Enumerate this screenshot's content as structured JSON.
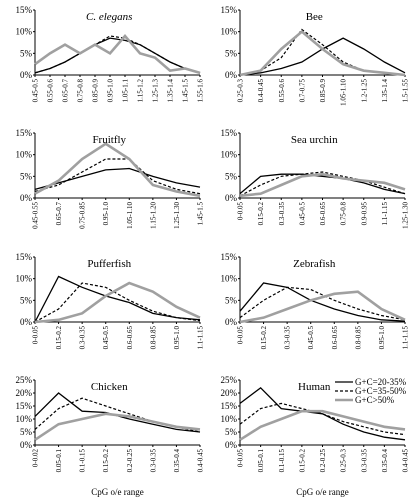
{
  "chart_data": [
    {
      "type": "line",
      "title": "C. elegans",
      "title_style": "italic",
      "categories": [
        "0.45-0.5",
        "0.55-0.6",
        "0.65-0.7",
        "0.75-0.8",
        "0.85-0.9",
        "0.95-1.0",
        "1.05-1.1",
        "1.15-1.2",
        "1.25-1.3",
        "1.35-1.4",
        "1.45-1.5",
        "1.55-1.6"
      ],
      "series": [
        {
          "name": "G+C=20-35%",
          "color": "#000000",
          "line_style": "solid",
          "values": [
            0.5,
            1.5,
            3,
            5,
            7,
            8.5,
            8,
            7,
            5,
            3,
            1.5,
            0.5
          ]
        },
        {
          "name": "G+C=35-50%",
          "color": "#000000",
          "line_style": "dashed",
          "values": [
            0.5,
            1.5,
            3,
            5,
            7,
            9,
            8.5,
            7,
            5,
            3,
            1.5,
            0.5
          ]
        },
        {
          "name": "G+C>50%",
          "color": "#a0a0a0",
          "line_style": "thick",
          "values": [
            2.5,
            5,
            7,
            5,
            7,
            5,
            9,
            5,
            4,
            1,
            1.5,
            0.5
          ]
        }
      ],
      "ylim": [
        0,
        15
      ],
      "yticks": [
        {
          "value": 0,
          "label": "0%"
        },
        {
          "value": 5,
          "label": "5%"
        },
        {
          "value": 10,
          "label": "10%"
        },
        {
          "value": 15,
          "label": "15%"
        }
      ]
    },
    {
      "type": "line",
      "title": "Bee",
      "categories": [
        "0.25-0.3",
        "0.4-0.45",
        "0.55-0.6",
        "0.7-0.75",
        "0.85-0.9",
        "1.05-1.10",
        "1.2-1.25",
        "1.35-1.4",
        "1.5-1.55"
      ],
      "series": [
        {
          "name": "G+C=20-35%",
          "color": "#000000",
          "line_style": "solid",
          "values": [
            0,
            0.5,
            1.5,
            3,
            6,
            8.5,
            6,
            3,
            0.5
          ]
        },
        {
          "name": "G+C=35-50%",
          "color": "#000000",
          "line_style": "dashed",
          "values": [
            0,
            1,
            4,
            10.5,
            7,
            3,
            1,
            0.5,
            0
          ]
        },
        {
          "name": "G+C>50%",
          "color": "#a0a0a0",
          "line_style": "thick",
          "values": [
            0,
            1,
            6,
            10,
            6,
            2.5,
            1,
            0.5,
            0
          ]
        }
      ],
      "ylim": [
        0,
        15
      ],
      "yticks": [
        {
          "value": 0,
          "label": "0%"
        },
        {
          "value": 5,
          "label": "5%"
        },
        {
          "value": 10,
          "label": "10%"
        },
        {
          "value": 15,
          "label": "15%"
        }
      ]
    },
    {
      "type": "line",
      "title": "Fruitfly",
      "categories": [
        "0.45-0.55",
        "0.65-0.7",
        "0.75-0.85",
        "0.95-1.0",
        "1.05-1.10",
        "1.15-1.20",
        "1.25-1.30",
        "1.45-1.5"
      ],
      "series": [
        {
          "name": "G+C=20-35%",
          "color": "#000000",
          "line_style": "solid",
          "values": [
            2,
            3.5,
            5,
            6.5,
            6.8,
            5,
            3.5,
            2.5
          ]
        },
        {
          "name": "G+C=35-50%",
          "color": "#000000",
          "line_style": "dashed",
          "values": [
            1.5,
            3,
            6,
            9,
            9,
            4,
            2,
            1
          ]
        },
        {
          "name": "G+C>50%",
          "color": "#a0a0a0",
          "line_style": "thick",
          "values": [
            1,
            4,
            9,
            12.5,
            9,
            3,
            1.5,
            0.5
          ]
        }
      ],
      "ylim": [
        0,
        15
      ],
      "yticks": [
        {
          "value": 0,
          "label": "0%"
        },
        {
          "value": 5,
          "label": "5%"
        },
        {
          "value": 10,
          "label": "10%"
        },
        {
          "value": 15,
          "label": "15%"
        }
      ]
    },
    {
      "type": "line",
      "title": "Sea urchin",
      "categories": [
        "0-0.05",
        "0.15-0.2",
        "0.3-0.35",
        "0.45-0.5",
        "0.6-0.65",
        "0.75-0.8",
        "0.9-0.95",
        "1.1-1.15",
        "1.25-1.30"
      ],
      "series": [
        {
          "name": "G+C=20-35%",
          "color": "#000000",
          "line_style": "solid",
          "values": [
            1,
            5,
            5.5,
            5.5,
            5,
            4.5,
            3.5,
            2,
            1
          ]
        },
        {
          "name": "G+C=35-50%",
          "color": "#000000",
          "line_style": "dashed",
          "values": [
            0.5,
            3,
            5,
            5.5,
            6,
            5,
            4,
            2.5,
            1
          ]
        },
        {
          "name": "G+C>50%",
          "color": "#a0a0a0",
          "line_style": "thick",
          "values": [
            0.5,
            1,
            3,
            5,
            5.5,
            4.5,
            4,
            3.5,
            2
          ]
        }
      ],
      "ylim": [
        0,
        15
      ],
      "yticks": [
        {
          "value": 0,
          "label": "0%"
        },
        {
          "value": 5,
          "label": "5%"
        },
        {
          "value": 10,
          "label": "10%"
        },
        {
          "value": 15,
          "label": "15%"
        }
      ]
    },
    {
      "type": "line",
      "title": "Pufferfish",
      "categories": [
        "0-0.05",
        "0.15-0.2",
        "0.3-0.35",
        "0.45-0.5",
        "0.6-0.65",
        "0.8-0.85",
        "0.95-1.0",
        "1.1-1.15"
      ],
      "series": [
        {
          "name": "G+C=20-35%",
          "color": "#000000",
          "line_style": "solid",
          "values": [
            0,
            10.5,
            8,
            6,
            4.5,
            2,
            1,
            0.5
          ]
        },
        {
          "name": "G+C=35-50%",
          "color": "#000000",
          "line_style": "dashed",
          "values": [
            0,
            3,
            9,
            8,
            5,
            2.5,
            1,
            0.3
          ]
        },
        {
          "name": "G+C>50%",
          "color": "#a0a0a0",
          "line_style": "thick",
          "values": [
            0,
            0.5,
            2,
            6,
            9,
            7,
            3.5,
            1
          ]
        }
      ],
      "ylim": [
        0,
        15
      ],
      "yticks": [
        {
          "value": 0,
          "label": "0%"
        },
        {
          "value": 5,
          "label": "5%"
        },
        {
          "value": 10,
          "label": "10%"
        },
        {
          "value": 15,
          "label": "15%"
        }
      ]
    },
    {
      "type": "line",
      "title": "Zebrafish",
      "categories": [
        "0-0.05",
        "0.15-0.2",
        "0.3-0.35",
        "0.45-0.5",
        "0.6-0.65",
        "0.8-0.85",
        "0.95-1.0",
        "1.1-1.15"
      ],
      "series": [
        {
          "name": "G+C=20-35%",
          "color": "#000000",
          "line_style": "solid",
          "values": [
            2.5,
            9,
            8,
            5,
            3,
            1.5,
            0.5,
            0.2
          ]
        },
        {
          "name": "G+C=35-50%",
          "color": "#000000",
          "line_style": "dashed",
          "values": [
            1,
            5,
            8,
            7.5,
            5,
            3,
            1.5,
            0.5
          ]
        },
        {
          "name": "G+C>50%",
          "color": "#a0a0a0",
          "line_style": "thick",
          "values": [
            0,
            1,
            3,
            5,
            6.5,
            7,
            3,
            0.5
          ]
        }
      ],
      "ylim": [
        0,
        15
      ],
      "yticks": [
        {
          "value": 0,
          "label": "0%"
        },
        {
          "value": 5,
          "label": "5%"
        },
        {
          "value": 10,
          "label": "10%"
        },
        {
          "value": 15,
          "label": "15%"
        }
      ]
    },
    {
      "type": "line",
      "title": "Chicken",
      "xlabel": "CpG o/e range",
      "categories": [
        "0-0.02",
        "0.05-0.1",
        "0.1-0.15",
        "0.15-0.2",
        "0.2-0.25",
        "0.3-0.35",
        "0.35-0.4",
        "0.4-0.45"
      ],
      "series": [
        {
          "name": "G+C=20-35%",
          "color": "#000000",
          "line_style": "solid",
          "values": [
            11,
            20,
            13,
            12.5,
            10,
            8,
            6,
            5
          ]
        },
        {
          "name": "G+C=35-50%",
          "color": "#000000",
          "line_style": "dashed",
          "values": [
            6,
            14,
            18,
            15,
            12,
            9,
            7,
            5
          ]
        },
        {
          "name": "G+C>50%",
          "color": "#a0a0a0",
          "line_style": "thick",
          "values": [
            2,
            8,
            10,
            12,
            11,
            9,
            7,
            6
          ]
        }
      ],
      "ylim": [
        0,
        25
      ],
      "yticks": [
        {
          "value": 0,
          "label": "0%"
        },
        {
          "value": 5,
          "label": "5%"
        },
        {
          "value": 10,
          "label": "10%"
        },
        {
          "value": 15,
          "label": "15%"
        },
        {
          "value": 20,
          "label": "20%"
        },
        {
          "value": 25,
          "label": "25%"
        }
      ]
    },
    {
      "type": "line",
      "title": "Human",
      "xlabel": "CpG o/e range",
      "legend": "upper-right",
      "categories": [
        "0-0.05",
        "0.05-0.1",
        "0.1-0.15",
        "0.15-0.2",
        "0.2-0.25",
        "0.25-0.3",
        "0.3-0.35",
        "0.35-0.4",
        "0.4-0.45"
      ],
      "series": [
        {
          "name": "G+C=20-35%",
          "color": "#000000",
          "line_style": "solid",
          "values": [
            16,
            22,
            14,
            13,
            12,
            8,
            5,
            3,
            2
          ]
        },
        {
          "name": "G+C=35-50%",
          "color": "#000000",
          "line_style": "dashed",
          "values": [
            8,
            14,
            16,
            14,
            12,
            9,
            7,
            5,
            4
          ]
        },
        {
          "name": "G+C>50%",
          "color": "#a0a0a0",
          "line_style": "thick",
          "values": [
            2,
            7,
            10,
            13,
            13,
            11,
            9,
            7,
            6
          ]
        }
      ],
      "ylim": [
        0,
        25
      ],
      "yticks": [
        {
          "value": 0,
          "label": "0%"
        },
        {
          "value": 5,
          "label": "5%"
        },
        {
          "value": 10,
          "label": "10%"
        },
        {
          "value": 15,
          "label": "15%"
        },
        {
          "value": 20,
          "label": "20%"
        },
        {
          "value": 25,
          "label": "25%"
        }
      ]
    }
  ]
}
